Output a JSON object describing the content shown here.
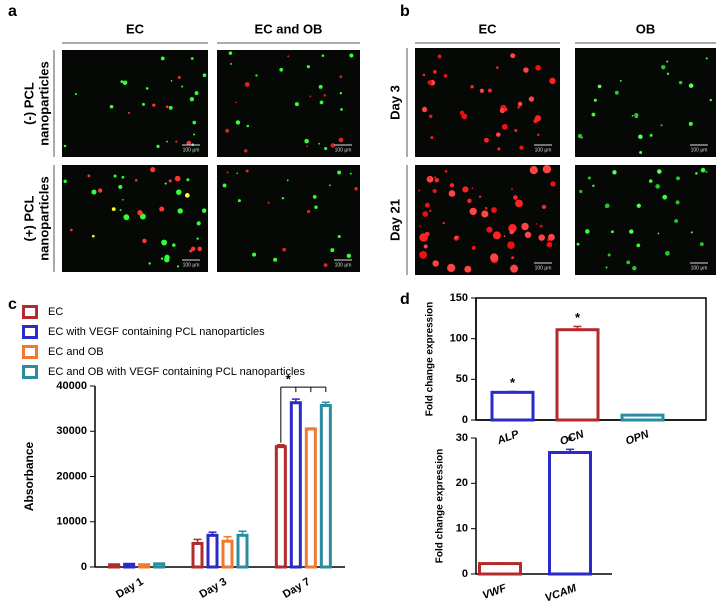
{
  "panels": {
    "a": {
      "label": "a",
      "columns": [
        "EC",
        "EC and OB"
      ],
      "rows": [
        [
          "(-) PCL",
          "nanoparticles"
        ],
        [
          "(+) PCL",
          "nanoparticles"
        ]
      ]
    },
    "b": {
      "label": "b",
      "columns": [
        "EC",
        "OB"
      ],
      "rows": [
        "Day 3",
        "Day 21"
      ]
    },
    "scale_bar": "100 μm"
  },
  "chart_data": [
    {
      "type": "bar",
      "panel_label": "c",
      "y_label": "Absorbance",
      "categories": [
        "Day 1",
        "Day 3",
        "Day 7"
      ],
      "series": [
        {
          "name": "EC",
          "color": "#b22a2a",
          "values": [
            500,
            5200,
            26600
          ],
          "errors": [
            100,
            900,
            400
          ]
        },
        {
          "name": "EC with VEGF containing PCL nanoparticles",
          "color": "#2a2ac8",
          "values": [
            600,
            7000,
            36300
          ],
          "errors": [
            100,
            700,
            800
          ]
        },
        {
          "name": "EC and OB",
          "color": "#f07830",
          "values": [
            500,
            5700,
            30500
          ],
          "errors": [
            100,
            1000,
            200
          ]
        },
        {
          "name": "EC and OB with VEGF containing PCL nanoparticles",
          "color": "#2a8ca0",
          "values": [
            700,
            7000,
            35700
          ],
          "errors": [
            100,
            900,
            700
          ]
        }
      ],
      "significance": "*",
      "ylim": [
        0,
        40000
      ],
      "yticks": [
        0,
        10000,
        20000,
        30000,
        40000
      ]
    },
    {
      "type": "bar",
      "panel_label": "d",
      "y_label": "Fold change expression",
      "frame": true,
      "categories": [
        "ALP",
        "OCN",
        "OPN"
      ],
      "values": [
        34,
        111,
        6
      ],
      "errors": [
        1,
        4,
        0.5
      ],
      "colors": [
        "#2a2ac8",
        "#b22a2a",
        "#2a8ca0"
      ],
      "significance": [
        "*",
        "*",
        null
      ],
      "ylim": [
        0,
        150
      ],
      "yticks": [
        0,
        50,
        100,
        150
      ]
    },
    {
      "type": "bar",
      "y_label": "Fold change expression",
      "frame": false,
      "categories": [
        "VWF",
        "VCAM"
      ],
      "values": [
        2.3,
        26.8
      ],
      "errors": [
        0.1,
        0.7
      ],
      "colors": [
        "#b22a2a",
        "#2a2ac8"
      ],
      "significance": [
        null,
        "*"
      ],
      "ylim": [
        0,
        30
      ],
      "yticks": [
        0,
        10,
        20,
        30
      ]
    }
  ]
}
